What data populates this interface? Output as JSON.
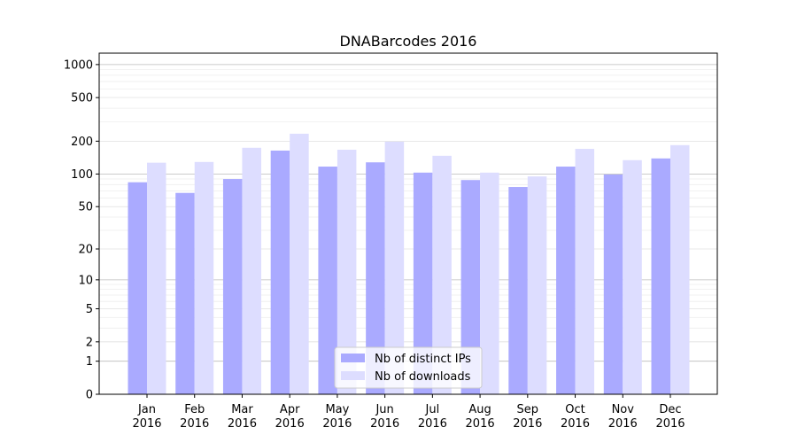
{
  "chart_data": {
    "type": "bar",
    "title": "DNABarcodes 2016",
    "xlabel": "",
    "ylabel": "",
    "yscale": "log(1+y) / symlog",
    "ylim": [
      0,
      1270
    ],
    "yticks": [
      0,
      1,
      2,
      5,
      10,
      20,
      50,
      100,
      200,
      500,
      1000
    ],
    "grid": true,
    "legend_position": "lower center",
    "categories": [
      "Jan\n2016",
      "Feb\n2016",
      "Mar\n2016",
      "Apr\n2016",
      "May\n2016",
      "Jun\n2016",
      "Jul\n2016",
      "Aug\n2016",
      "Sep\n2016",
      "Oct\n2016",
      "Nov\n2016",
      "Dec\n2016"
    ],
    "series": [
      {
        "name": "Nb of distinct IPs",
        "color": "#aaaaff",
        "values": [
          84,
          67,
          90,
          164,
          117,
          128,
          103,
          88,
          76,
          117,
          99,
          139
        ]
      },
      {
        "name": "Nb of downloads",
        "color": "#ddddff",
        "values": [
          127,
          129,
          174,
          234,
          167,
          198,
          147,
          103,
          95,
          170,
          134,
          184
        ]
      }
    ]
  }
}
